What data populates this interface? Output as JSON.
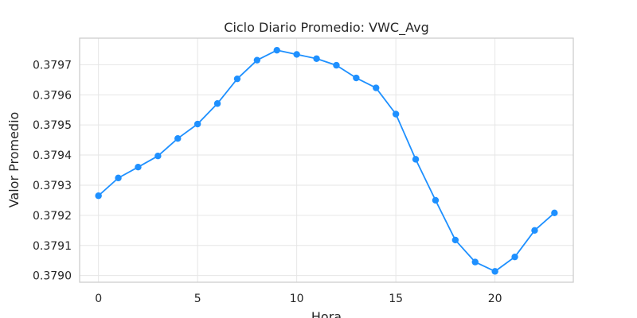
{
  "chart_data": {
    "type": "line",
    "title": "Ciclo Diario Promedio: VWC_Avg",
    "xlabel": "Hora",
    "ylabel": "Valor Promedio",
    "xlim": [
      -0.95,
      23.95
    ],
    "ylim": [
      0.378978,
      0.379788
    ],
    "xticks": [
      0,
      5,
      10,
      15,
      20
    ],
    "yticks": [
      0.379,
      0.3791,
      0.3792,
      0.3793,
      0.3794,
      0.3795,
      0.3796,
      0.3797
    ],
    "ytick_labels": [
      "0.3790",
      "0.3791",
      "0.3792",
      "0.3793",
      "0.3794",
      "0.3795",
      "0.3796",
      "0.3797"
    ],
    "xtick_labels": [
      "0",
      "5",
      "10",
      "15",
      "20"
    ],
    "grid": true,
    "colors": {
      "line": "#1e90ff",
      "marker": "#1e90ff"
    },
    "series": [
      {
        "x": [
          0,
          1,
          2,
          3,
          4,
          5,
          6,
          7,
          8,
          9,
          10,
          11,
          12,
          13,
          14,
          15,
          16,
          17,
          18,
          19,
          20,
          21,
          22,
          23
        ],
        "values": [
          0.379265,
          0.379324,
          0.37936,
          0.379397,
          0.379455,
          0.379503,
          0.379571,
          0.379653,
          0.379715,
          0.379748,
          0.379734,
          0.37972,
          0.379698,
          0.379656,
          0.379623,
          0.379536,
          0.379386,
          0.37925,
          0.379118,
          0.379045,
          0.379014,
          0.379062,
          0.37915,
          0.379208
        ]
      }
    ]
  }
}
